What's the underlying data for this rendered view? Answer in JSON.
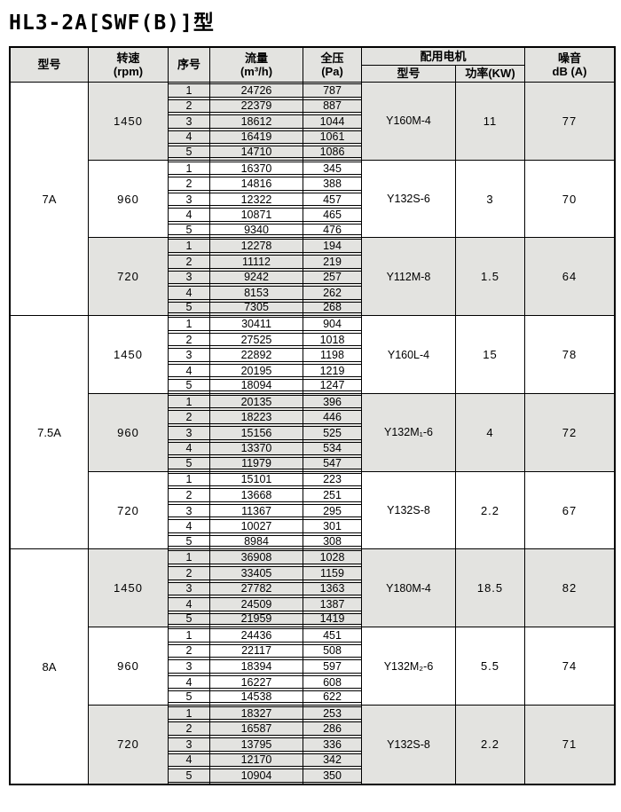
{
  "title": "HL3-2A[SWF(B)]型",
  "colors": {
    "shaded": "#e3e3e0",
    "border": "#000000",
    "background": "#ffffff"
  },
  "header": {
    "model": "型号",
    "speed_l1": "转速",
    "speed_l2": "(rpm)",
    "seq": "序号",
    "flow_l1": "流量",
    "flow_l2": "(m³/h)",
    "pressure_l1": "全压",
    "pressure_l2": "(Pa)",
    "motor_group": "配用电机",
    "motor_model": "型号",
    "motor_power": "功率(KW)",
    "noise_l1": "噪音",
    "noise_l2": "dB (A)"
  },
  "groups": [
    {
      "model": "7A",
      "blocks": [
        {
          "speed": "1450",
          "shaded": true,
          "motor": "Y160M-4",
          "power": "11",
          "noise": "77",
          "rows": [
            [
              "1",
              "24726",
              "787"
            ],
            [
              "2",
              "22379",
              "887"
            ],
            [
              "3",
              "18612",
              "1044"
            ],
            [
              "4",
              "16419",
              "1061"
            ],
            [
              "5",
              "14710",
              "1086"
            ]
          ]
        },
        {
          "speed": "960",
          "shaded": false,
          "motor": "Y132S-6",
          "power": "3",
          "noise": "70",
          "rows": [
            [
              "1",
              "16370",
              "345"
            ],
            [
              "2",
              "14816",
              "388"
            ],
            [
              "3",
              "12322",
              "457"
            ],
            [
              "4",
              "10871",
              "465"
            ],
            [
              "5",
              "9340",
              "476"
            ]
          ]
        },
        {
          "speed": "720",
          "shaded": true,
          "motor": "Y112M-8",
          "power": "1.5",
          "noise": "64",
          "rows": [
            [
              "1",
              "12278",
              "194"
            ],
            [
              "2",
              "11112",
              "219"
            ],
            [
              "3",
              "9242",
              "257"
            ],
            [
              "4",
              "8153",
              "262"
            ],
            [
              "5",
              "7305",
              "268"
            ]
          ]
        }
      ]
    },
    {
      "model": "7.5A",
      "blocks": [
        {
          "speed": "1450",
          "shaded": false,
          "motor": "Y160L-4",
          "power": "15",
          "noise": "78",
          "rows": [
            [
              "1",
              "30411",
              "904"
            ],
            [
              "2",
              "27525",
              "1018"
            ],
            [
              "3",
              "22892",
              "1198"
            ],
            [
              "4",
              "20195",
              "1219"
            ],
            [
              "5",
              "18094",
              "1247"
            ]
          ]
        },
        {
          "speed": "960",
          "shaded": true,
          "motor": "Y132M₁-6",
          "power": "4",
          "noise": "72",
          "rows": [
            [
              "1",
              "20135",
              "396"
            ],
            [
              "2",
              "18223",
              "446"
            ],
            [
              "3",
              "15156",
              "525"
            ],
            [
              "4",
              "13370",
              "534"
            ],
            [
              "5",
              "11979",
              "547"
            ]
          ]
        },
        {
          "speed": "720",
          "shaded": false,
          "motor": "Y132S-8",
          "power": "2.2",
          "noise": "67",
          "rows": [
            [
              "1",
              "15101",
              "223"
            ],
            [
              "2",
              "13668",
              "251"
            ],
            [
              "3",
              "11367",
              "295"
            ],
            [
              "4",
              "10027",
              "301"
            ],
            [
              "5",
              "8984",
              "308"
            ]
          ]
        }
      ]
    },
    {
      "model": "8A",
      "blocks": [
        {
          "speed": "1450",
          "shaded": true,
          "motor": "Y180M-4",
          "power": "18.5",
          "noise": "82",
          "rows": [
            [
              "1",
              "36908",
              "1028"
            ],
            [
              "2",
              "33405",
              "1159"
            ],
            [
              "3",
              "27782",
              "1363"
            ],
            [
              "4",
              "24509",
              "1387"
            ],
            [
              "5",
              "21959",
              "1419"
            ]
          ]
        },
        {
          "speed": "960",
          "shaded": false,
          "motor": "Y132M₂-6",
          "power": "5.5",
          "noise": "74",
          "rows": [
            [
              "1",
              "24436",
              "451"
            ],
            [
              "2",
              "22117",
              "508"
            ],
            [
              "3",
              "18394",
              "597"
            ],
            [
              "4",
              "16227",
              "608"
            ],
            [
              "5",
              "14538",
              "622"
            ]
          ]
        },
        {
          "speed": "720",
          "shaded": true,
          "motor": "Y132S-8",
          "power": "2.2",
          "noise": "71",
          "rows": [
            [
              "1",
              "18327",
              "253"
            ],
            [
              "2",
              "16587",
              "286"
            ],
            [
              "3",
              "13795",
              "336"
            ],
            [
              "4",
              "12170",
              "342"
            ],
            [
              "5",
              "10904",
              "350"
            ]
          ]
        }
      ]
    }
  ]
}
